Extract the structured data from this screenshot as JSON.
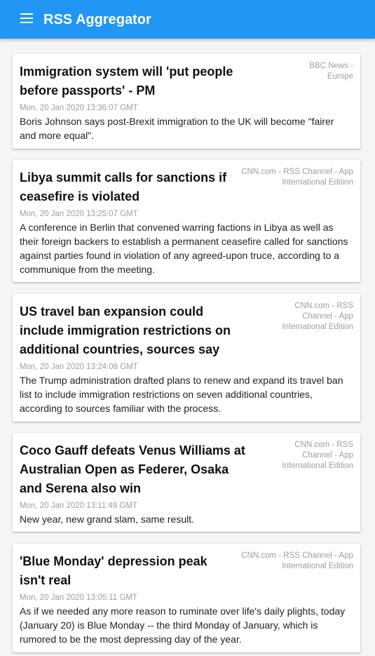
{
  "app": {
    "title": "RSS Aggregator",
    "menu_icon": "menu-icon",
    "accent_color": "#2196f3"
  },
  "articles": [
    {
      "title": "Immigration system will 'put people before passports' - PM",
      "source": "BBC News - Europe",
      "date": "Mon, 20 Jan 2020 13:36:07 GMT",
      "description": "Boris Johnson says post-Brexit immigration to the UK will become \"fairer and more equal\"."
    },
    {
      "title": "Libya summit calls for sanctions if ceasefire is violated",
      "source": "CNN.com - RSS Channel - App International Edition",
      "date": "Mon, 20 Jan 2020 13:25:07 GMT",
      "description": "A conference in Berlin that convened warring factions in Libya as well as their foreign backers to establish a permanent ceasefire called for sanctions against parties found in violation of any agreed-upon truce, according to a communique from the meeting."
    },
    {
      "title": "US travel ban expansion could include immigration restrictions on additional countries, sources say",
      "source": "CNN.com - RSS Channel - App International Edition",
      "date": "Mon, 20 Jan 2020 13:24:08 GMT",
      "description": "The Trump administration drafted plans to renew and expand its travel ban list to include immigration restrictions on seven additional countries, according to sources familiar with the process."
    },
    {
      "title": "Coco Gauff defeats Venus Williams at Australian Open as Federer, Osaka and Serena also win",
      "source": "CNN.com - RSS Channel - App International Edition",
      "date": "Mon, 20 Jan 2020 13:11:49 GMT",
      "description": "New year, new grand slam, same result."
    },
    {
      "title": "'Blue Monday' depression peak isn't real",
      "source": "CNN.com - RSS Channel - App International Edition",
      "date": "Mon, 20 Jan 2020 13:05:11 GMT",
      "description": "As if we needed any more reason to ruminate over life's daily plights, today (January 20) is Blue Monday -- the third Monday of January, which is rumored to be the most depressing day of the year."
    }
  ]
}
